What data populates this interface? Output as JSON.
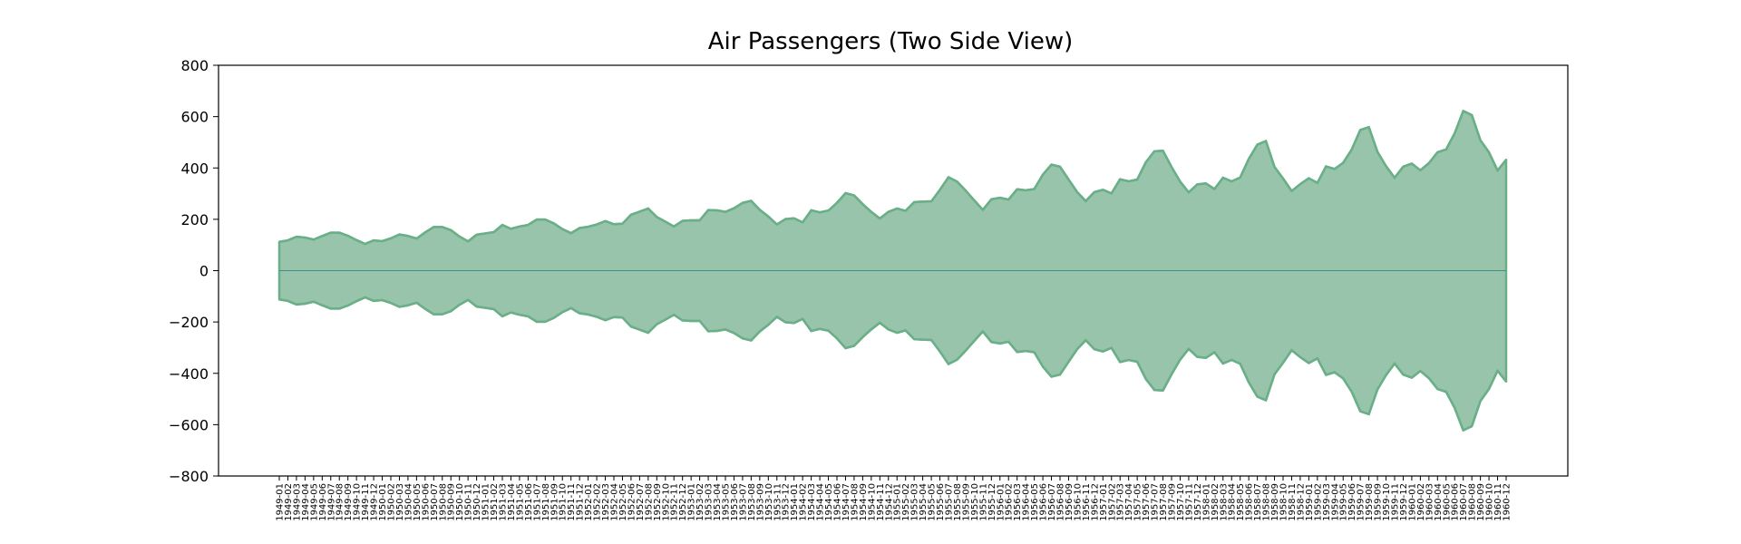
{
  "chart_data": {
    "type": "area",
    "title": "Air Passengers (Two Side View)",
    "xlabel": "",
    "ylabel": "",
    "ylim": [
      -800,
      800
    ],
    "yticks": [
      -800,
      -600,
      -400,
      -200,
      0,
      200,
      400,
      600,
      800
    ],
    "grid": false,
    "mirrored": true,
    "fill_color": "#97c4ab",
    "line_color": "#6aaf87",
    "zero_line_color": "#3f8f8c",
    "x": [
      "1949-01",
      "1949-02",
      "1949-03",
      "1949-04",
      "1949-05",
      "1949-06",
      "1949-07",
      "1949-08",
      "1949-09",
      "1949-10",
      "1949-11",
      "1949-12",
      "1950-01",
      "1950-02",
      "1950-03",
      "1950-04",
      "1950-05",
      "1950-06",
      "1950-07",
      "1950-08",
      "1950-09",
      "1950-10",
      "1950-11",
      "1950-12",
      "1951-01",
      "1951-02",
      "1951-03",
      "1951-04",
      "1951-05",
      "1951-06",
      "1951-07",
      "1951-08",
      "1951-09",
      "1951-10",
      "1951-11",
      "1951-12",
      "1952-01",
      "1952-02",
      "1952-03",
      "1952-04",
      "1952-05",
      "1952-06",
      "1952-07",
      "1952-08",
      "1952-09",
      "1952-10",
      "1952-11",
      "1952-12",
      "1953-01",
      "1953-02",
      "1953-03",
      "1953-04",
      "1953-05",
      "1953-06",
      "1953-07",
      "1953-08",
      "1953-09",
      "1953-10",
      "1953-11",
      "1953-12",
      "1954-01",
      "1954-02",
      "1954-03",
      "1954-04",
      "1954-05",
      "1954-06",
      "1954-07",
      "1954-08",
      "1954-09",
      "1954-10",
      "1954-11",
      "1954-12",
      "1955-01",
      "1955-02",
      "1955-03",
      "1955-04",
      "1955-05",
      "1955-06",
      "1955-07",
      "1955-08",
      "1955-09",
      "1955-10",
      "1955-11",
      "1955-12",
      "1956-01",
      "1956-02",
      "1956-03",
      "1956-04",
      "1956-05",
      "1956-06",
      "1956-07",
      "1956-08",
      "1956-09",
      "1956-10",
      "1956-11",
      "1956-12",
      "1957-01",
      "1957-02",
      "1957-03",
      "1957-04",
      "1957-05",
      "1957-06",
      "1957-07",
      "1957-08",
      "1957-09",
      "1957-10",
      "1957-11",
      "1957-12",
      "1958-01",
      "1958-02",
      "1958-03",
      "1958-04",
      "1958-05",
      "1958-06",
      "1958-07",
      "1958-08",
      "1958-09",
      "1958-10",
      "1958-11",
      "1958-12",
      "1959-01",
      "1959-02",
      "1959-03",
      "1959-04",
      "1959-05",
      "1959-06",
      "1959-07",
      "1959-08",
      "1959-09",
      "1959-10",
      "1959-11",
      "1959-12",
      "1960-01",
      "1960-02",
      "1960-03",
      "1960-04",
      "1960-05",
      "1960-06",
      "1960-07",
      "1960-08",
      "1960-09",
      "1960-10",
      "1960-11",
      "1960-12"
    ],
    "values": [
      112,
      118,
      132,
      129,
      121,
      135,
      148,
      148,
      136,
      119,
      104,
      118,
      115,
      126,
      141,
      135,
      125,
      149,
      170,
      170,
      158,
      133,
      114,
      140,
      145,
      150,
      178,
      163,
      172,
      178,
      199,
      199,
      184,
      162,
      146,
      166,
      171,
      180,
      193,
      181,
      183,
      218,
      230,
      242,
      209,
      191,
      172,
      194,
      196,
      196,
      236,
      235,
      229,
      243,
      264,
      272,
      237,
      211,
      180,
      201,
      204,
      188,
      235,
      227,
      234,
      264,
      302,
      293,
      259,
      229,
      203,
      229,
      242,
      233,
      267,
      269,
      270,
      315,
      364,
      347,
      312,
      274,
      237,
      278,
      284,
      277,
      317,
      313,
      318,
      374,
      413,
      405,
      355,
      306,
      271,
      306,
      315,
      301,
      356,
      348,
      355,
      422,
      465,
      467,
      404,
      347,
      305,
      336,
      340,
      318,
      362,
      348,
      363,
      435,
      491,
      505,
      404,
      359,
      310,
      337,
      360,
      342,
      406,
      396,
      420,
      472,
      548,
      559,
      463,
      407,
      362,
      405,
      417,
      391,
      419,
      461,
      472,
      535,
      622,
      606,
      508,
      461,
      390,
      432
    ]
  }
}
